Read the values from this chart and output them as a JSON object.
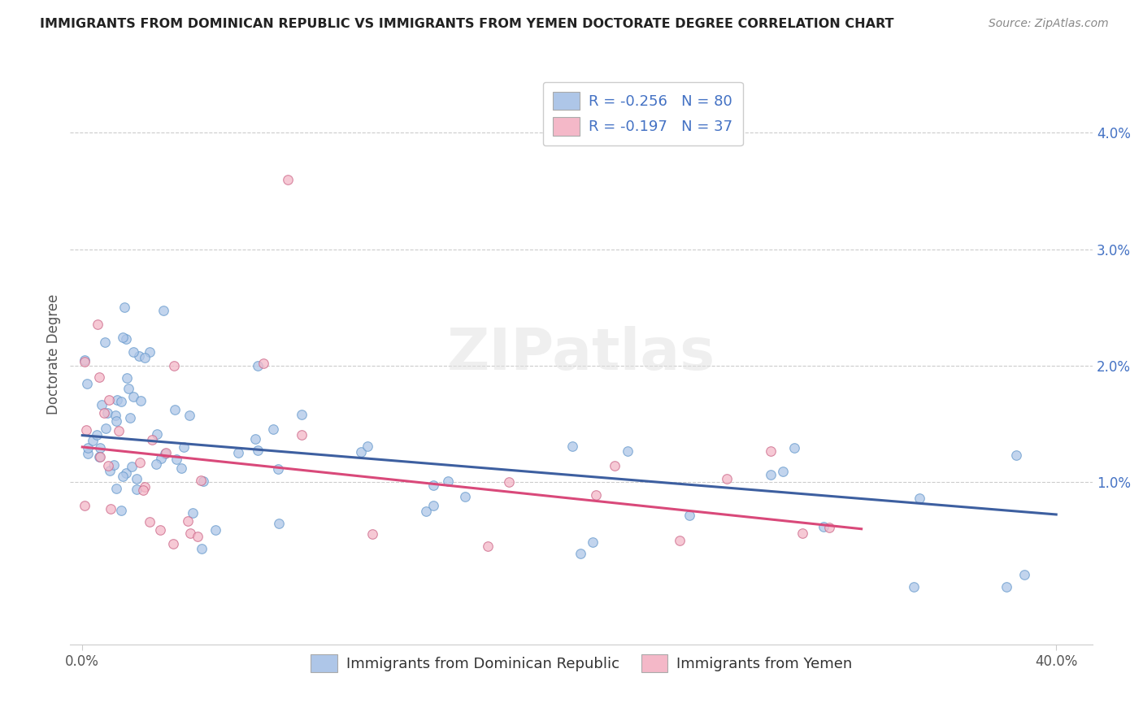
{
  "title": "IMMIGRANTS FROM DOMINICAN REPUBLIC VS IMMIGRANTS FROM YEMEN DOCTORATE DEGREE CORRELATION CHART",
  "source": "Source: ZipAtlas.com",
  "ylabel": "Doctorate Degree",
  "ytick_vals": [
    0.01,
    0.02,
    0.03,
    0.04
  ],
  "ytick_labels": [
    "1.0%",
    "2.0%",
    "3.0%",
    "4.0%"
  ],
  "xtick_vals": [
    0.0,
    0.4
  ],
  "xtick_labels": [
    "0.0%",
    "40.0%"
  ],
  "xlim": [
    -0.005,
    0.415
  ],
  "ylim": [
    -0.004,
    0.046
  ],
  "legend_entries": [
    {
      "label": "R = -0.256   N = 80",
      "facecolor": "#aec6e8"
    },
    {
      "label": "R = -0.197   N = 37",
      "facecolor": "#f4b8c8"
    }
  ],
  "legend_bottom_labels": [
    "Immigrants from Dominican Republic",
    "Immigrants from Yemen"
  ],
  "dr_color": "#aec6e8",
  "dr_edge_color": "#6699cc",
  "yemen_color": "#f4b8c8",
  "yemen_edge_color": "#cc6688",
  "dr_line_color": "#3d5fa0",
  "yemen_line_color": "#d9497a",
  "watermark": "ZIPatlas",
  "background_color": "#ffffff",
  "grid_color": "#cccccc",
  "title_color": "#222222",
  "source_color": "#888888",
  "ylabel_color": "#555555",
  "ytick_color": "#4472c4",
  "xtick_color": "#555555",
  "legend_text_color": "#4472c4"
}
